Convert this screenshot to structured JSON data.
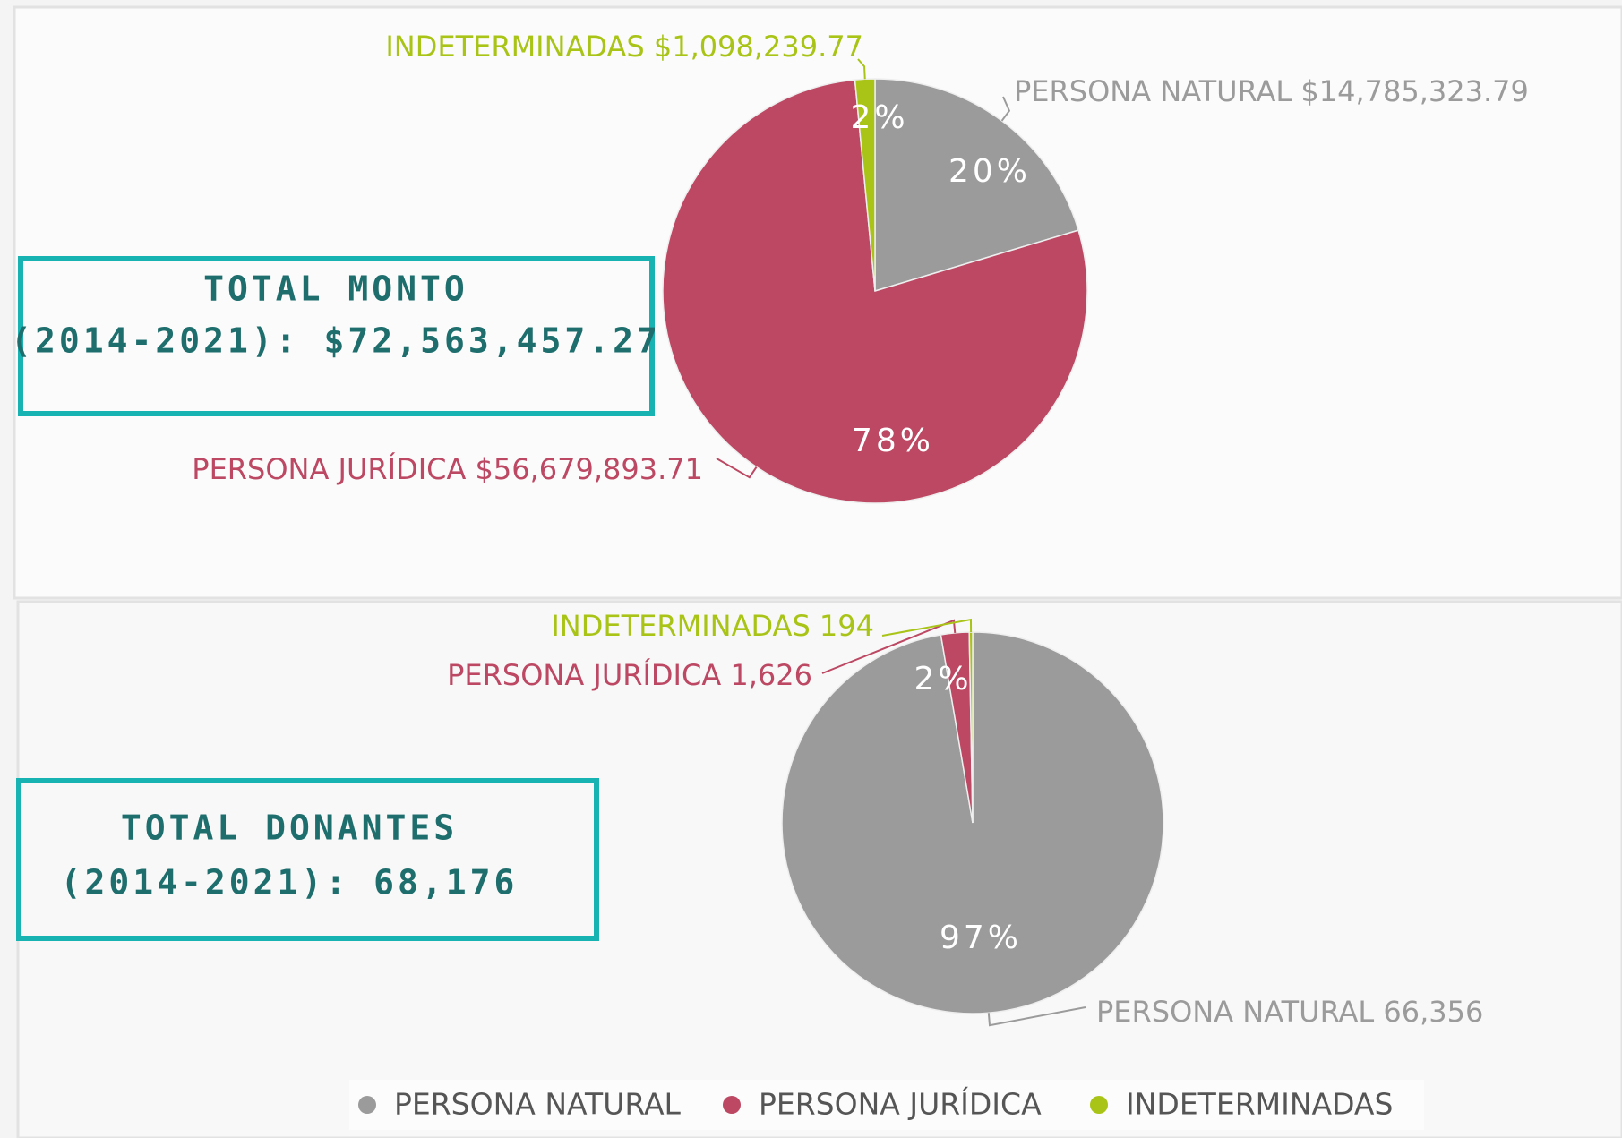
{
  "chart_data": [
    {
      "type": "pie",
      "annotation": [
        "TOTAL MONTO",
        "(2014-2021): $72,563,457.27"
      ],
      "categories": [
        "PERSONA NATURAL",
        "PERSONA JURÍDICA",
        "INDETERMINADAS"
      ],
      "values": [
        14785323.79,
        56679893.71,
        1098239.77
      ],
      "value_labels": [
        "$14,785,323.79",
        "$56,679,893.71",
        "$1,098,239.77"
      ],
      "percent_labels": [
        "20%",
        "78%",
        "2%"
      ],
      "colors": [
        "#9b9b9b",
        "#bc4863",
        "#a9c417"
      ]
    },
    {
      "type": "pie",
      "annotation": [
        "TOTAL DONANTES",
        "(2014-2021): 68,176"
      ],
      "categories": [
        "PERSONA NATURAL",
        "PERSONA JURÍDICA",
        "INDETERMINADAS"
      ],
      "values": [
        66356,
        1626,
        194
      ],
      "value_labels": [
        "66,356",
        "1,626",
        "194"
      ],
      "percent_labels": [
        "97%",
        "2%",
        null
      ],
      "colors": [
        "#9b9b9b",
        "#bc4863",
        "#a9c417"
      ],
      "legend": "bottom"
    }
  ]
}
